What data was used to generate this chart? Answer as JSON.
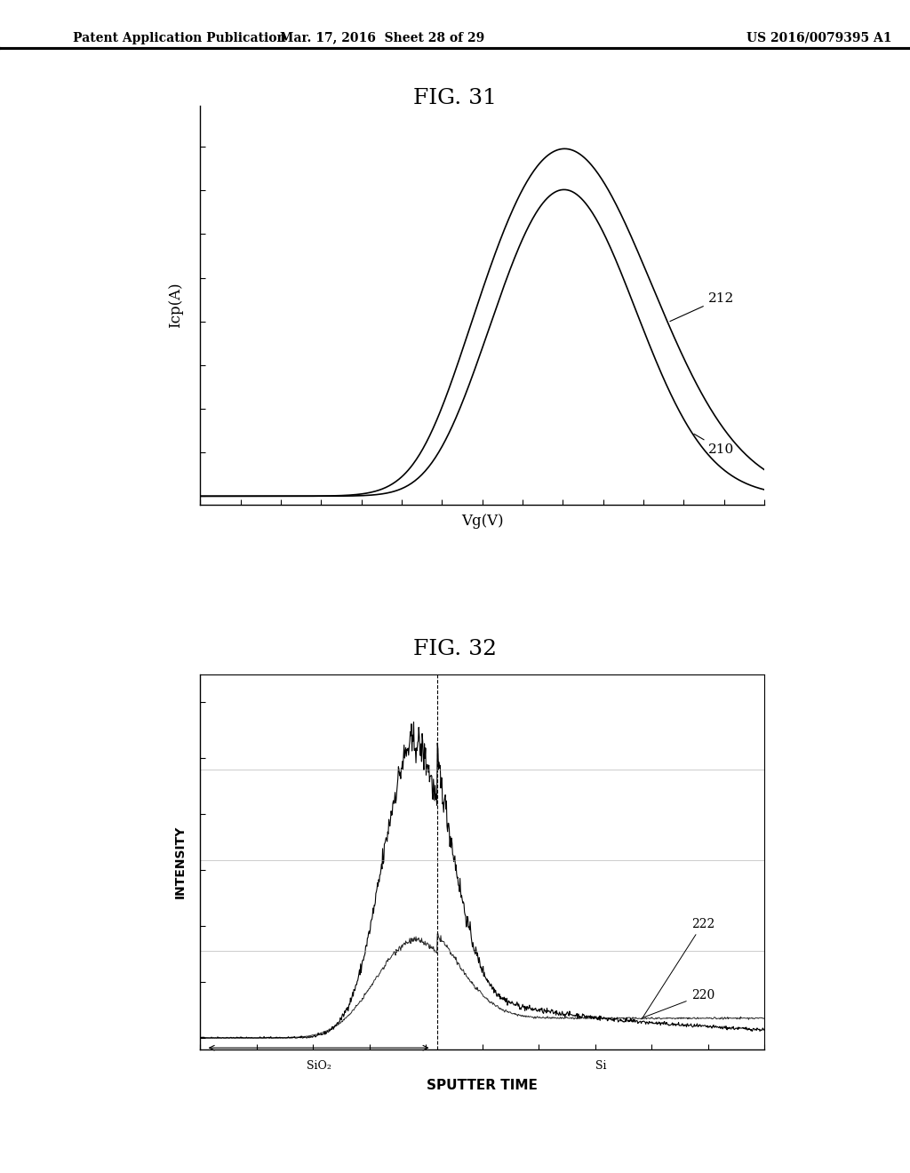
{
  "bg_color": "#ffffff",
  "header_left": "Patent Application Publication",
  "header_center": "Mar. 17, 2016  Sheet 28 of 29",
  "header_right": "US 2016/0079395 A1",
  "fig31_title": "FIG. 31",
  "fig32_title": "FIG. 32",
  "fig31_ylabel": "Icp(A)",
  "fig31_xlabel": "Vg(V)",
  "fig31_label212": "212",
  "fig31_label210": "210",
  "fig32_ylabel": "INTENSITY",
  "fig32_xlabel": "SPUTTER TIME",
  "fig32_label222": "222",
  "fig32_label220": "220",
  "fig32_sio2": "SiO₂",
  "fig32_si": "Si",
  "text_color": "#000000",
  "line_color": "#000000",
  "grid_color": "#aaaaaa"
}
